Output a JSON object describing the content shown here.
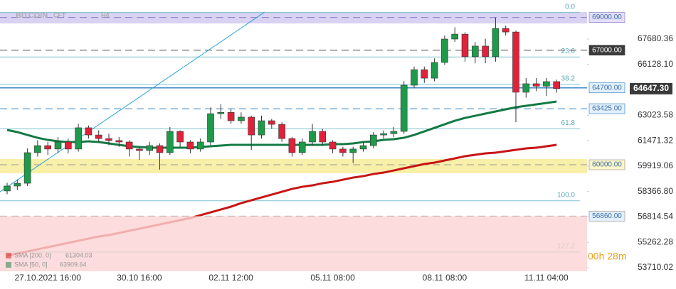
{
  "chart_data": {
    "type": "candlestick",
    "title": "BITCOIN",
    "source": "CFT",
    "timeframe": "H4",
    "categories": [
      null,
      null,
      null,
      null,
      "27.10.2021 16:00",
      null,
      null,
      null,
      null,
      null,
      null,
      null,
      null,
      "30.10 16:00",
      null,
      null,
      null,
      null,
      null,
      null,
      null,
      null,
      "02.11 12:00",
      null,
      null,
      null,
      null,
      null,
      null,
      null,
      null,
      null,
      "05.11 08:00",
      null,
      null,
      null,
      null,
      null,
      null,
      null,
      null,
      null,
      null,
      "08.11 08:00",
      null,
      null,
      null,
      null,
      null,
      null,
      null,
      null,
      null,
      "11.11 04:00",
      null
    ],
    "open": [
      58400,
      58700,
      58870,
      60740,
      61170,
      60960,
      61390,
      60960,
      62260,
      61820,
      61600,
      61480,
      61390,
      60960,
      60870,
      61170,
      60740,
      62040,
      61390,
      60960,
      61390,
      63120,
      63200,
      62690,
      62910,
      61820,
      62690,
      62470,
      61600,
      60740,
      61390,
      62040,
      61390,
      60960,
      60740,
      60960,
      61170,
      61820,
      61900,
      62040,
      64860,
      65810,
      65290,
      66250,
      67680,
      67980,
      66600,
      67250,
      66600,
      68330,
      68110,
      64430,
      64950,
      64800,
      65080
    ],
    "high": [
      58900,
      59100,
      61000,
      61500,
      61400,
      61700,
      61600,
      62500,
      62400,
      62100,
      61900,
      61700,
      61500,
      61100,
      61400,
      61300,
      62300,
      62100,
      61500,
      61600,
      63500,
      63700,
      63400,
      63200,
      63000,
      63000,
      62800,
      62600,
      61700,
      61600,
      62500,
      62200,
      61500,
      61100,
      61100,
      61400,
      62000,
      62100,
      62300,
      65100,
      66000,
      66000,
      66500,
      67900,
      68400,
      68100,
      67500,
      67700,
      69000,
      68500,
      68200,
      65300,
      65300,
      65300,
      65200
    ],
    "low": [
      58200,
      58450,
      58700,
      60500,
      60600,
      60700,
      60700,
      60800,
      61600,
      61400,
      61200,
      61100,
      60500,
      60300,
      60600,
      59700,
      60600,
      61100,
      60700,
      60800,
      61200,
      62800,
      62500,
      62500,
      60900,
      61600,
      62200,
      61400,
      60500,
      60600,
      61200,
      61200,
      60700,
      60500,
      60100,
      60800,
      61000,
      61600,
      61700,
      61900,
      64700,
      65000,
      65100,
      66100,
      67500,
      66300,
      66200,
      66200,
      66300,
      67900,
      62600,
      64100,
      64500,
      64200,
      64400
    ],
    "close": [
      58700,
      58870,
      60740,
      61170,
      60960,
      61390,
      60960,
      62260,
      61820,
      61600,
      61480,
      61390,
      60960,
      60870,
      61170,
      60740,
      62040,
      61390,
      60960,
      61390,
      63120,
      63200,
      62690,
      62910,
      61820,
      62690,
      62470,
      61600,
      60740,
      61390,
      62040,
      61390,
      60960,
      60740,
      60960,
      61170,
      61820,
      61900,
      62040,
      64860,
      65810,
      65290,
      66250,
      67680,
      67980,
      66600,
      67250,
      66600,
      68330,
      68110,
      64430,
      64950,
      64800,
      65080,
      64647.3
    ],
    "up_color": "#1e9a4a",
    "down_color": "#e0213a",
    "ylim": [
      53493,
      69546
    ],
    "yticks": [
      67680.36,
      {
        "value": 66128.1,
        "label": "66128.10"
      },
      63023.58,
      61471.32,
      59919.06,
      {
        "value": 58366.8,
        "label": "58366.80"
      },
      56814.54,
      55262.28,
      53710.02
    ],
    "overlays": [
      {
        "name": "SMA [200, 0]",
        "last": 61304.03,
        "color": "#c81414",
        "values": [
          54446,
          54576,
          54706,
          54836,
          54966,
          55096,
          55226,
          55357,
          55487,
          55617,
          55704,
          55834,
          55964,
          56094,
          56224,
          56354,
          56484,
          56615,
          56745,
          56919,
          57092,
          57266,
          57440,
          57656,
          57830,
          58004,
          58177,
          58351,
          58524,
          58654,
          58741,
          58871,
          58958,
          59088,
          59218,
          59305,
          59435,
          59522,
          59652,
          59783,
          59913,
          60043,
          60130,
          60260,
          60390,
          60520,
          60607,
          60694,
          60737,
          60824,
          60911,
          60997,
          61041,
          61128,
          61214
        ]
      },
      {
        "name": "SMA [50, 0]",
        "last": 63909.64,
        "color": "#137a43",
        "values": [
          62126,
          61996,
          61822,
          61648,
          61518,
          61431,
          61388,
          61388,
          61431,
          61388,
          61301,
          61214,
          61128,
          61084,
          61041,
          61041,
          61041,
          61041,
          61041,
          61084,
          61128,
          61171,
          61214,
          61214,
          61214,
          61214,
          61214,
          61214,
          61214,
          61214,
          61214,
          61214,
          61258,
          61258,
          61301,
          61388,
          61431,
          61518,
          61562,
          61648,
          61822,
          62039,
          62256,
          62473,
          62690,
          62863,
          62993,
          63124,
          63254,
          63384,
          63514,
          63601,
          63688,
          63774,
          63861
        ]
      }
    ],
    "trendline": {
      "x": [
        -0.7,
        25.3
      ],
      "y": [
        58351,
        69328
      ],
      "color": "#2aa3d8"
    },
    "zones": [
      {
        "from": 68635,
        "to": 69330,
        "color": "#d9d2f2"
      },
      {
        "from": 59479,
        "to": 60347,
        "color": "#f8f0a8"
      },
      {
        "from": 53493,
        "to": 56860,
        "color": "#fbd3d3"
      }
    ],
    "levels": [
      {
        "value": 69000,
        "label": "69000.00",
        "color": "#8a7fc8",
        "box": "#e4def8"
      },
      {
        "value": 67000,
        "label": "67000.00",
        "color": "#444444",
        "box": "#3a3a3a"
      },
      {
        "value": 64700,
        "label": "64700.00",
        "color": "#3a88c8",
        "box": "#e3f0fb"
      },
      {
        "value": 63425,
        "label": "63425.00",
        "color": "#3a88c8",
        "box": "#e3f0fb"
      },
      {
        "value": 60000,
        "label": "60000.00",
        "color": "#999999",
        "box": "#fbf5c8"
      },
      {
        "value": 56860,
        "label": "56860.00",
        "color": "#999999",
        "box": "#e3f0fb"
      }
    ],
    "fib": [
      {
        "label": "0.0",
        "value": 69300
      },
      {
        "label": "23.6",
        "value": 66586
      },
      {
        "label": "38.2",
        "value": 64907
      },
      {
        "label": "61.8",
        "value": 62193
      },
      {
        "label": "100.0",
        "value": 57800
      },
      {
        "label": "127.2",
        "value": 54672
      }
    ],
    "last_price": {
      "value": 64647.3,
      "label": "64647.30"
    },
    "countdown": "00h 28m"
  }
}
